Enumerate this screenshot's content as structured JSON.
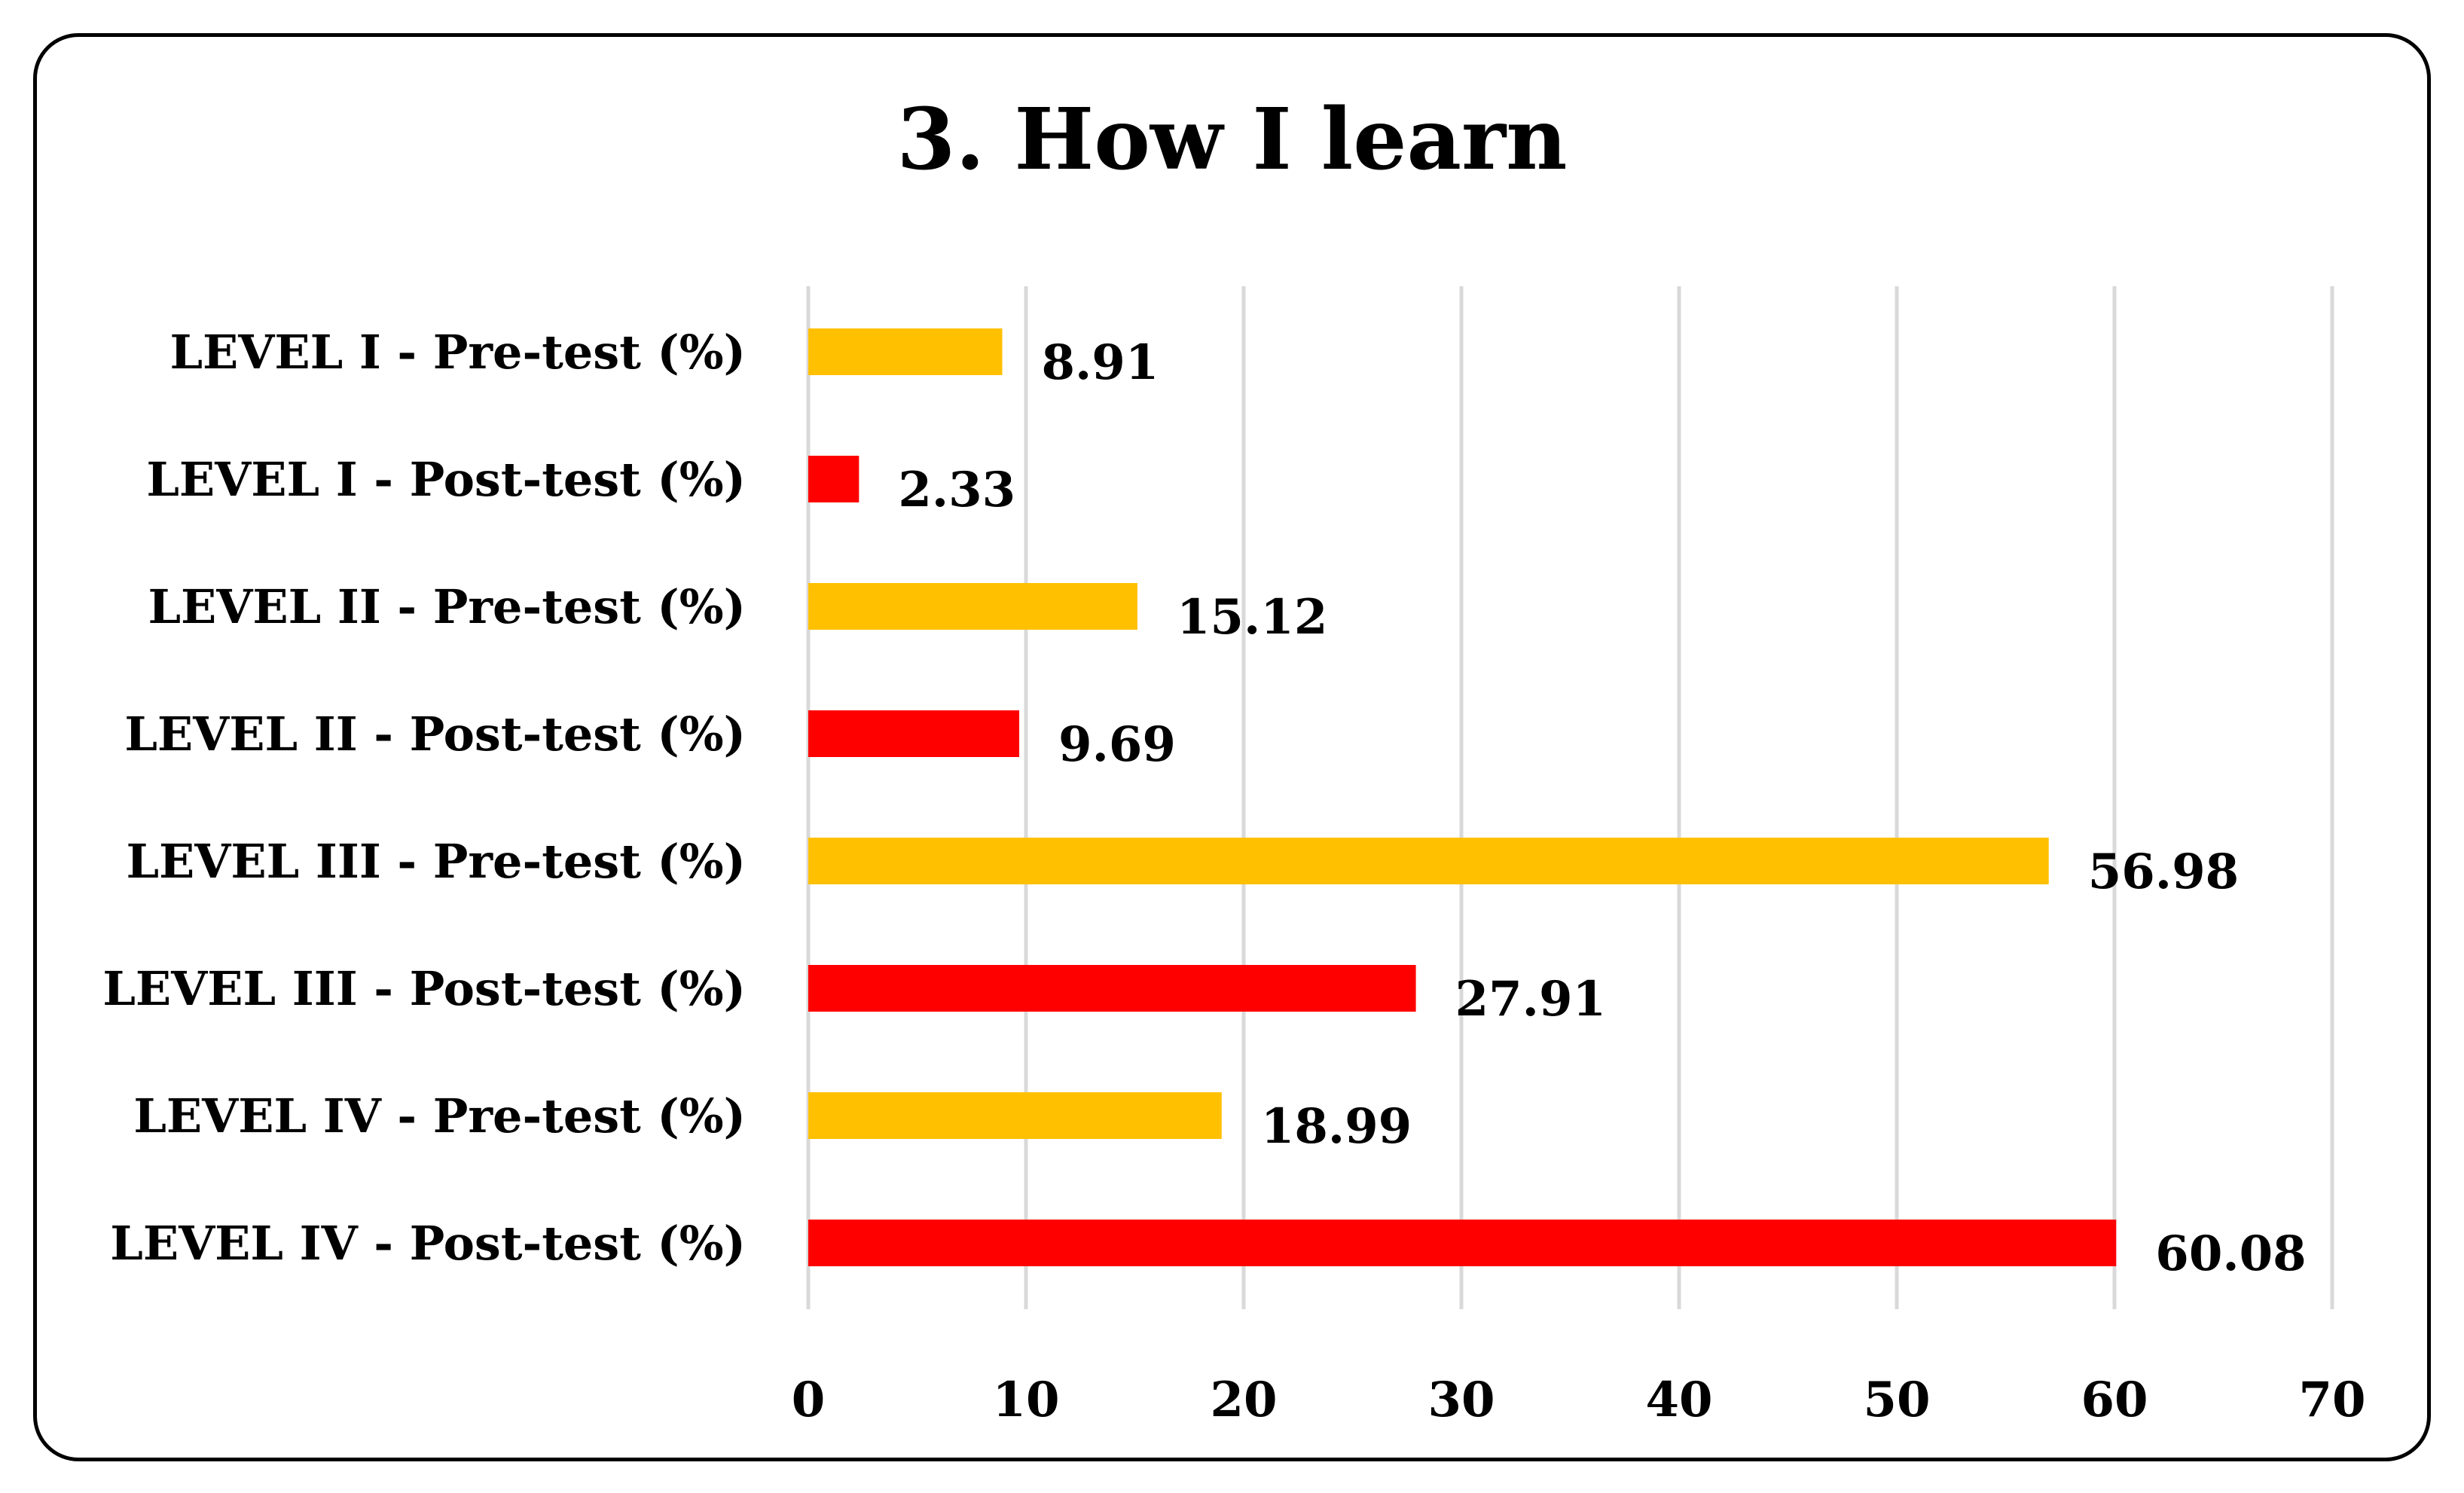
{
  "chart_data": {
    "type": "bar",
    "orientation": "horizontal",
    "title": "3. How I learn",
    "xlabel": "",
    "ylabel": "",
    "xlim": [
      0,
      70
    ],
    "x_ticks": [
      0,
      10,
      20,
      30,
      40,
      50,
      60,
      70
    ],
    "grid": true,
    "legend": "none",
    "colors": {
      "pre_test": "#ffc000",
      "post_test": "#ff0000"
    },
    "categories": [
      "LEVEL I - Pre-test (%)",
      "LEVEL I - Post-test (%)",
      "LEVEL II - Pre-test (%)",
      "LEVEL II - Post-test (%)",
      "LEVEL III - Pre-test (%)",
      "LEVEL III - Post-test (%)",
      "LEVEL IV - Pre-test (%)",
      "LEVEL IV - Post-test (%)"
    ],
    "values": [
      8.91,
      2.33,
      15.12,
      9.69,
      56.98,
      27.91,
      18.99,
      60.08
    ],
    "value_labels": [
      "8.91",
      "2.33",
      "15.12",
      "9.69",
      "56.98",
      "27.91",
      "18.99",
      "60.08"
    ],
    "bar_color_keys": [
      "pre_test",
      "post_test",
      "pre_test",
      "post_test",
      "pre_test",
      "post_test",
      "pre_test",
      "post_test"
    ]
  }
}
